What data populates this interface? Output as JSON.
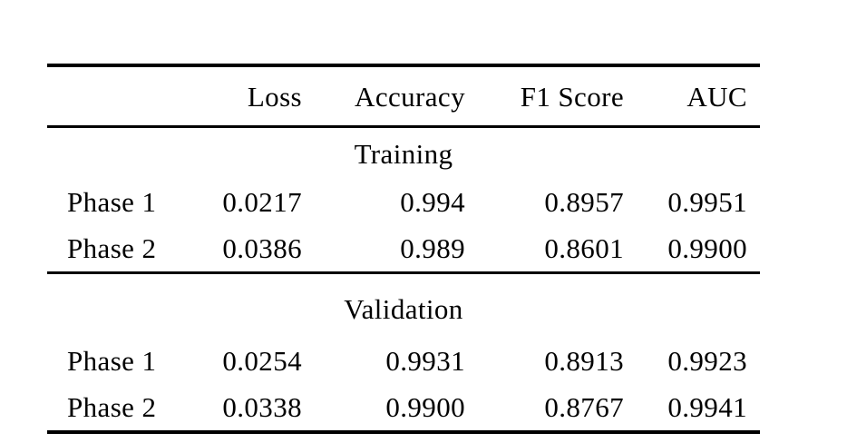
{
  "table": {
    "columns": [
      "Loss",
      "Accuracy",
      "F1 Score",
      "AUC"
    ],
    "corner_label": "",
    "sections": [
      {
        "label": "Training",
        "rows": [
          {
            "label": "Phase 1",
            "values": [
              "0.0217",
              "0.994",
              "0.8957",
              "0.9951"
            ]
          },
          {
            "label": "Phase 2",
            "values": [
              "0.0386",
              "0.989",
              "0.8601",
              "0.9900"
            ]
          }
        ]
      },
      {
        "label": "Validation",
        "rows": [
          {
            "label": "Phase 1",
            "values": [
              "0.0254",
              "0.9931",
              "0.8913",
              "0.9923"
            ]
          },
          {
            "label": "Phase 2",
            "values": [
              "0.0338",
              "0.9900",
              "0.8767",
              "0.9941"
            ]
          }
        ]
      }
    ]
  },
  "colors": {
    "background": "#ffffff",
    "text": "#000000",
    "rule": "#000000"
  }
}
